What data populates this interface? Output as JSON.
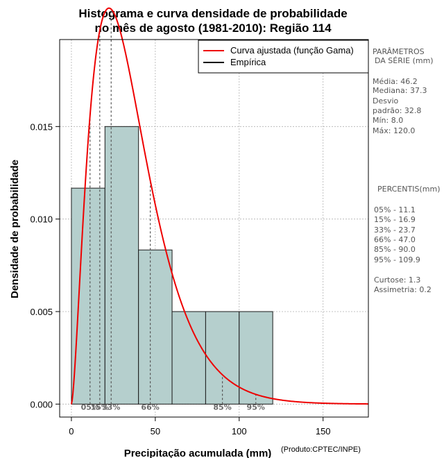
{
  "chart_data": {
    "type": "histogram",
    "title_line1": "Histograma e curva densidade de probabilidade",
    "title_line2": "no mês de agosto (1981-2010): Região 114",
    "xlabel": "Precipitação acumulada (mm)",
    "ylabel": "Densidade de probabilidade",
    "credit": "(Produto:CPTEC/INPE)",
    "xlim": [
      -7,
      177
    ],
    "ylim": [
      -0.0007,
      0.0197
    ],
    "x_ticks": [
      0,
      50,
      100,
      150
    ],
    "x_tick_labels": [
      "0",
      "50",
      "100",
      "150"
    ],
    "y_ticks": [
      0.0,
      0.005,
      0.01,
      0.015
    ],
    "y_tick_labels": [
      "0.000",
      "0.005",
      "0.010",
      "0.015"
    ],
    "grid": true,
    "bins": [
      {
        "from": 0,
        "to": 20,
        "density": 0.01167
      },
      {
        "from": 20,
        "to": 40,
        "density": 0.015
      },
      {
        "from": 40,
        "to": 60,
        "density": 0.00833
      },
      {
        "from": 60,
        "to": 80,
        "density": 0.005
      },
      {
        "from": 80,
        "to": 100,
        "density": 0.005
      },
      {
        "from": 100,
        "to": 120,
        "density": 0.005
      }
    ],
    "fitted_curve": {
      "distribution": "gamma",
      "shape": 2.6,
      "scale": 14.0
    },
    "legend": [
      {
        "label": "Curva ajustada (função Gama)",
        "color": "#ee0000"
      },
      {
        "label": "Empírica",
        "color": "#000000"
      }
    ],
    "legend_position": "top-right",
    "percentile_markers": [
      {
        "x": 11.1,
        "label": "05%"
      },
      {
        "x": 16.9,
        "label": "15%"
      },
      {
        "x": 23.7,
        "label": "33%"
      },
      {
        "x": 47.0,
        "label": "66%"
      },
      {
        "x": 90.0,
        "label": "85%"
      },
      {
        "x": 109.9,
        "label": "95%"
      }
    ],
    "colors": {
      "bar_fill": "#b5cfcd",
      "bar_stroke": "#1a1a1a",
      "curve": "#ee0000",
      "grid": "#b0b0b0",
      "percentile_line": "#555555"
    }
  },
  "side_panel": {
    "params_title_1": "PARÂMETROS",
    "params_title_2": "DA SÉRIE (mm)",
    "stats": [
      "Média:  46.2",
      "Mediana:  37.3",
      "Desvio",
      "padrão:  32.8",
      "Mín:  8.0",
      "Máx:  120.0"
    ],
    "percentis_title": "PERCENTIS(mm)",
    "percentis": [
      "05% -  11.1",
      "15% -  16.9",
      "33% -  23.7",
      "66% -  47.0",
      "85% -  90.0",
      "95% -  109.9"
    ],
    "shape_stats": [
      "Curtose:  1.3",
      "Assimetria:  0.2"
    ]
  }
}
